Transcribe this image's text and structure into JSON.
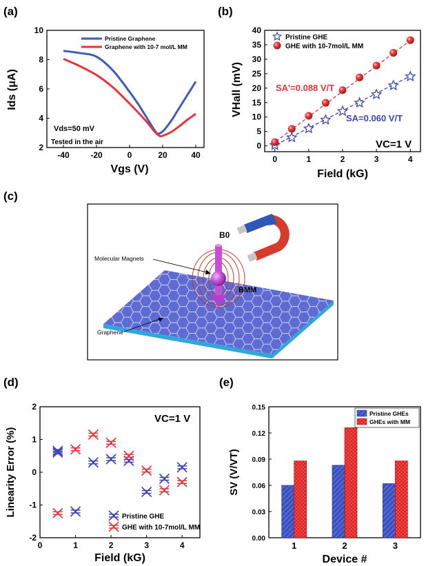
{
  "panel_labels": {
    "a": "(a)",
    "b": "(b)",
    "c": "(c)",
    "d": "(d)",
    "e": "(e)"
  },
  "panel_c": {
    "labels": {
      "b0": "B0",
      "bmm": "BMM",
      "molecular_magnets": "Molecular Magnets",
      "graphene": "Graphene"
    },
    "colors": {
      "sheet": "#5d6bd3",
      "sheet_edge": "#2fa7d9",
      "molecule": "#c64fd8",
      "field_lines": "#c0392b"
    }
  },
  "chart_data": [
    {
      "id": "a",
      "type": "line",
      "xlabel": "Vgs (V)",
      "ylabel": "Ids (μA)",
      "xlim": [
        -50,
        45
      ],
      "ylim": [
        2,
        10
      ],
      "xticks": [
        -40,
        -20,
        0,
        20,
        40
      ],
      "yticks": [
        2,
        4,
        6,
        8,
        10
      ],
      "legend_position": "top-right",
      "annotations": [
        "Vds=50 mV",
        "Tested in the air"
      ],
      "series": [
        {
          "name": "Pristine Graphene",
          "color": "#3d5bb7",
          "x": [
            -40,
            -30,
            -20,
            -10,
            0,
            5,
            10,
            15,
            17,
            20,
            25,
            30,
            35,
            40
          ],
          "y": [
            8.6,
            8.45,
            8.2,
            7.25,
            5.8,
            5.0,
            4.1,
            3.2,
            2.95,
            3.1,
            3.8,
            4.7,
            5.6,
            6.5
          ]
        },
        {
          "name": "Graphene with 10-7 mol/L MM",
          "color": "#e8333a",
          "x": [
            -40,
            -30,
            -20,
            -10,
            0,
            10,
            15,
            18,
            20,
            25,
            30,
            35,
            40
          ],
          "y": [
            8.05,
            7.55,
            6.95,
            6.1,
            5.0,
            3.8,
            3.1,
            2.8,
            2.8,
            3.05,
            3.45,
            3.9,
            4.3
          ]
        }
      ]
    },
    {
      "id": "b",
      "type": "scatter",
      "xlabel": "Field (kG)",
      "ylabel": "VHall (mV)",
      "xlim": [
        -0.3,
        4.3
      ],
      "ylim": [
        -2,
        40
      ],
      "xticks": [
        0,
        1,
        2,
        3,
        4
      ],
      "yticks": [
        0,
        5,
        10,
        15,
        20,
        25,
        30,
        35,
        40
      ],
      "legend_position": "top-left",
      "annotations": [
        "SA'=0.088 V/T",
        "SA=0.060 V/T",
        "VC=1 V"
      ],
      "series": [
        {
          "name": "Pristine GHE",
          "color": "#3d44b8",
          "marker": "star",
          "x": [
            0,
            0.5,
            1,
            1.5,
            2,
            2.5,
            3,
            3.5,
            4
          ],
          "y": [
            0.2,
            2.9,
            6.0,
            9.0,
            12.0,
            14.9,
            17.8,
            20.9,
            24.0
          ],
          "fit_slope": 6.0
        },
        {
          "name": "GHE with 10-7mol/L MM",
          "color": "#e8333a",
          "marker": "sphere",
          "x": [
            0,
            0.5,
            1,
            1.5,
            2,
            2.5,
            3,
            3.5,
            4
          ],
          "y": [
            1.3,
            5.9,
            10.4,
            14.9,
            19.3,
            23.7,
            27.8,
            32.2,
            36.6
          ],
          "fit_slope": 8.8
        }
      ]
    },
    {
      "id": "d",
      "type": "scatter",
      "xlabel": "Field (kG)",
      "ylabel": "Linearity Error (%)",
      "xlim": [
        0,
        4.5
      ],
      "ylim": [
        -2,
        2
      ],
      "xticks": [
        0,
        1,
        2,
        3,
        4
      ],
      "yticks": [
        -2,
        -1,
        0,
        1,
        2
      ],
      "legend_position": "bottom-right",
      "annotations": [
        "VC=1 V"
      ],
      "series": [
        {
          "name": "Pristine GHE",
          "color": "#3d44b8",
          "marker": "cross-star",
          "x": [
            0.5,
            0.5,
            1.0,
            1.5,
            2.0,
            2.5,
            3.0,
            3.5,
            4.0
          ],
          "y": [
            0.65,
            0.6,
            -1.2,
            0.3,
            0.4,
            0.35,
            -0.6,
            -0.2,
            0.15
          ]
        },
        {
          "name": "GHE with 10-7mol/L MM",
          "color": "#e8333a",
          "marker": "cross-star",
          "x": [
            0.5,
            1.0,
            1.5,
            2.0,
            2.5,
            3.0,
            3.5,
            4.0
          ],
          "y": [
            -1.25,
            0.7,
            1.15,
            0.9,
            0.5,
            0.05,
            -0.55,
            -0.3
          ]
        }
      ]
    },
    {
      "id": "e",
      "type": "bar",
      "xlabel": "Device #",
      "ylabel": "SV (V/VT)",
      "categories": [
        "1",
        "2",
        "3"
      ],
      "ylim": [
        0,
        0.15
      ],
      "yticks": [
        "0.00",
        "0.03",
        "0.06",
        "0.09",
        "0.12",
        "0.15"
      ],
      "legend_position": "top-right",
      "series": [
        {
          "name": "Pristine GHEs",
          "color": "#3a52c0",
          "values": [
            0.06,
            0.083,
            0.062
          ]
        },
        {
          "name": "GHEs with MM",
          "color": "#ff3b3b",
          "values": [
            0.088,
            0.126,
            0.088
          ]
        }
      ]
    }
  ]
}
